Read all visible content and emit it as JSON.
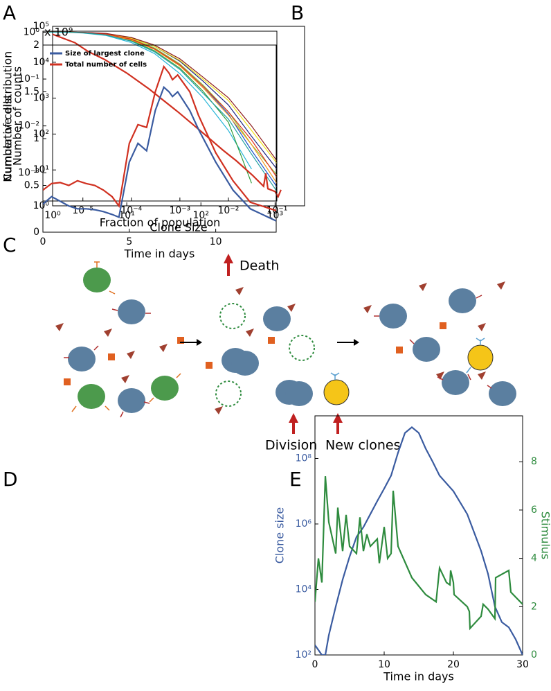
{
  "chart_data": [
    {
      "type": "line",
      "panel": "A",
      "xlabel": "Fraction of population",
      "ylabel": "Cumulative distribution",
      "xlog": true,
      "ylog": true,
      "xlim": [
        1.5e-06,
        0.1
      ],
      "ylim": [
        0.00025,
        1.05
      ],
      "xticks": [
        {
          "value": 1e-05,
          "label": "10⁻⁵"
        },
        {
          "value": 0.0001,
          "label": "10⁻⁴"
        },
        {
          "value": 0.001,
          "label": "10⁻³"
        },
        {
          "value": 0.01,
          "label": "10⁻²"
        },
        {
          "value": 0.1,
          "label": "10⁻¹"
        }
      ],
      "yticks": [
        {
          "value": 1,
          "label": "10⁰"
        },
        {
          "value": 0.1,
          "label": "10⁻¹"
        },
        {
          "value": 0.01,
          "label": "10⁻²"
        },
        {
          "value": 0.001,
          "label": "10⁻³"
        }
      ],
      "x": [
        2e-06,
        5e-06,
        1e-05,
        3e-05,
        0.0001,
        0.0003,
        0.001,
        0.003,
        0.01,
        0.03,
        0.1
      ],
      "series": [
        {
          "color": "#1a237e",
          "values": [
            1,
            1,
            0.99,
            0.93,
            0.75,
            0.5,
            0.24,
            0.09,
            0.028,
            0.006,
            0.0012
          ]
        },
        {
          "color": "#1e56c8",
          "values": [
            1,
            1,
            0.98,
            0.9,
            0.7,
            0.45,
            0.2,
            0.07,
            0.018,
            0.003,
            0.0005
          ]
        },
        {
          "color": "#26b5d8",
          "values": [
            1,
            0.99,
            0.96,
            0.85,
            0.6,
            0.35,
            0.13,
            0.04,
            0.008,
            0.0012,
            null
          ]
        },
        {
          "color": "#2e9c3a",
          "values": [
            1,
            1,
            0.97,
            0.88,
            0.66,
            0.4,
            0.17,
            0.055,
            0.012,
            0.0006,
            null
          ]
        },
        {
          "color": "#8cc63e",
          "values": [
            1,
            1,
            0.98,
            0.9,
            0.72,
            0.46,
            0.21,
            0.075,
            0.02,
            0.004,
            0.0009
          ]
        },
        {
          "color": "#f2e21a",
          "values": [
            1,
            1,
            0.99,
            0.92,
            0.74,
            0.5,
            0.25,
            0.1,
            0.035,
            0.008,
            0.0016
          ]
        },
        {
          "color": "#f39a1e",
          "values": [
            1,
            1,
            0.98,
            0.89,
            0.68,
            0.43,
            0.19,
            0.065,
            0.017,
            0.004,
            0.0006
          ]
        },
        {
          "color": "#e0301e",
          "values": [
            1,
            1,
            0.98,
            0.91,
            0.71,
            0.44,
            0.2,
            0.07,
            0.02,
            0.005,
            0.0008
          ]
        },
        {
          "color": "#8b1a1a",
          "values": [
            1,
            1,
            0.99,
            0.94,
            0.77,
            0.53,
            0.27,
            0.11,
            0.04,
            0.01,
            0.0018
          ]
        },
        {
          "color": "#20a0a0",
          "values": [
            1,
            1,
            0.97,
            0.87,
            0.64,
            0.38,
            0.16,
            0.05,
            0.014,
            0.0025,
            0.0004
          ]
        }
      ]
    },
    {
      "type": "line",
      "panel": "B",
      "xlabel": "Clone Size",
      "ylabel": "Number of counts",
      "xlog": true,
      "ylog": true,
      "xlim": [
        1,
        2500
      ],
      "ylim": [
        1,
        100000
      ],
      "xticks": [
        {
          "value": 1,
          "label": "10⁰"
        },
        {
          "value": 10,
          "label": "10¹"
        },
        {
          "value": 100,
          "label": "10²"
        },
        {
          "value": 1000,
          "label": "10³"
        }
      ],
      "yticks": [
        {
          "value": 1,
          "label": "10⁰"
        },
        {
          "value": 10,
          "label": "10¹"
        },
        {
          "value": 100,
          "label": "10²"
        },
        {
          "value": 1000,
          "label": "10³"
        },
        {
          "value": 10000,
          "label": "10⁴"
        },
        {
          "value": 100000,
          "label": "10⁵"
        }
      ],
      "x": [
        1,
        2,
        3,
        5,
        10,
        20,
        50,
        100,
        200,
        300,
        500,
        700,
        750,
        800,
        1000,
        1100,
        1200
      ],
      "series": [
        {
          "color": "#d03020",
          "values": [
            60000,
            35000,
            20000,
            12000,
            5000,
            1800,
            400,
            120,
            35,
            18,
            7,
            3.5,
            8,
            3,
            2.5,
            1.8,
            2.8
          ]
        }
      ]
    },
    {
      "type": "line",
      "panel": "D",
      "xlabel": "Time in days",
      "ylabel": "Number of cells",
      "y_multiplier": "x 10⁹",
      "xlim": [
        0,
        13.5
      ],
      "ylim": [
        0,
        2
      ],
      "xticks": [
        0,
        5,
        10
      ],
      "yticks": [
        0,
        0.5,
        1,
        1.5,
        2
      ],
      "legend": "upper left",
      "x": [
        0,
        0.5,
        1,
        1.5,
        2,
        2.5,
        3,
        3.5,
        4,
        4.4,
        5,
        5.5,
        6,
        6.5,
        7,
        7.3,
        7.5,
        7.8,
        8.5,
        9,
        10,
        11,
        12,
        13.5
      ],
      "series": [
        {
          "name": "Size of largest clone",
          "color": "#3a5ba0",
          "values": [
            0.3,
            0.38,
            0.33,
            0.28,
            0.25,
            0.25,
            0.24,
            0.22,
            0.19,
            0.16,
            0.75,
            0.95,
            0.87,
            1.3,
            1.55,
            1.5,
            1.45,
            1.5,
            1.3,
            1.1,
            0.75,
            0.45,
            0.25,
            0.12
          ]
        },
        {
          "name": "Total number of cells",
          "color": "#d03020",
          "values": [
            0.45,
            0.52,
            0.53,
            0.5,
            0.55,
            0.52,
            0.5,
            0.45,
            0.38,
            0.28,
            0.95,
            1.15,
            1.12,
            1.5,
            1.77,
            1.7,
            1.63,
            1.68,
            1.5,
            1.25,
            0.85,
            0.55,
            0.32,
            0.23
          ]
        }
      ]
    },
    {
      "type": "line",
      "panel": "E",
      "xlabel": "Time in days",
      "ylabel": "Clone size",
      "y2label": "Stimulus",
      "ylog": true,
      "xlim": [
        0,
        30
      ],
      "ylim": [
        100,
        2000000000
      ],
      "y2lim": [
        0,
        9.9
      ],
      "xticks": [
        0,
        10,
        20,
        30
      ],
      "yticks": [
        {
          "value": 100,
          "label": "10²"
        },
        {
          "value": 10000,
          "label": "10⁴"
        },
        {
          "value": 1000000,
          "label": "10⁶"
        },
        {
          "value": 100000000,
          "label": "10⁸"
        }
      ],
      "y2ticks": [
        0,
        2,
        4,
        6,
        8
      ],
      "ycolor": "#3a5ba0",
      "y2color": "#2e8b3e",
      "series": [
        {
          "color": "#3a5ba0",
          "x": [
            0,
            1,
            1.5,
            2,
            3,
            4,
            5,
            6,
            7,
            8,
            9,
            10,
            11,
            12,
            13,
            14,
            15,
            16,
            17,
            18,
            20,
            22,
            24,
            25,
            26,
            27,
            28,
            29,
            30
          ],
          "values": [
            200,
            100,
            100,
            400,
            3000,
            20000,
            100000,
            400000,
            800000,
            2000000,
            5000000,
            12000000,
            30000000,
            150000000,
            600000000,
            900000000,
            600000000,
            200000000,
            80000000,
            30000000,
            10000000,
            2000000,
            150000,
            30000,
            3000,
            1000,
            700,
            300,
            100
          ]
        },
        {
          "color": "#2e8b3e",
          "axis": "y2",
          "x": [
            0,
            0.5,
            1,
            1.5,
            2,
            3,
            3.3,
            4,
            4.5,
            5,
            6,
            6.5,
            7,
            7.5,
            8,
            9,
            9.3,
            10,
            10.5,
            11,
            11.3,
            12,
            14,
            16,
            17.5,
            18,
            19,
            19.5,
            19.6,
            20,
            20.1,
            22,
            22.3,
            22.4,
            24,
            24.3,
            25,
            26,
            26.1,
            28,
            28.3,
            30
          ],
          "values": [
            2.2,
            4,
            3,
            7.4,
            5.5,
            4.2,
            6.1,
            4.3,
            5.8,
            4.5,
            4.2,
            5.7,
            4.3,
            5,
            4.5,
            4.8,
            3.8,
            5.3,
            4,
            4.2,
            6.8,
            4.5,
            3.2,
            2.5,
            2.2,
            3.6,
            3,
            2.9,
            3.5,
            3,
            2.5,
            2,
            1.8,
            1.1,
            1.6,
            2.1,
            1.9,
            1.5,
            3.2,
            3.5,
            2.6,
            2.1
          ]
        }
      ]
    }
  ],
  "diagram": {
    "panel": "C",
    "death": "Death",
    "division": "Division",
    "new_clones": "New clones"
  }
}
